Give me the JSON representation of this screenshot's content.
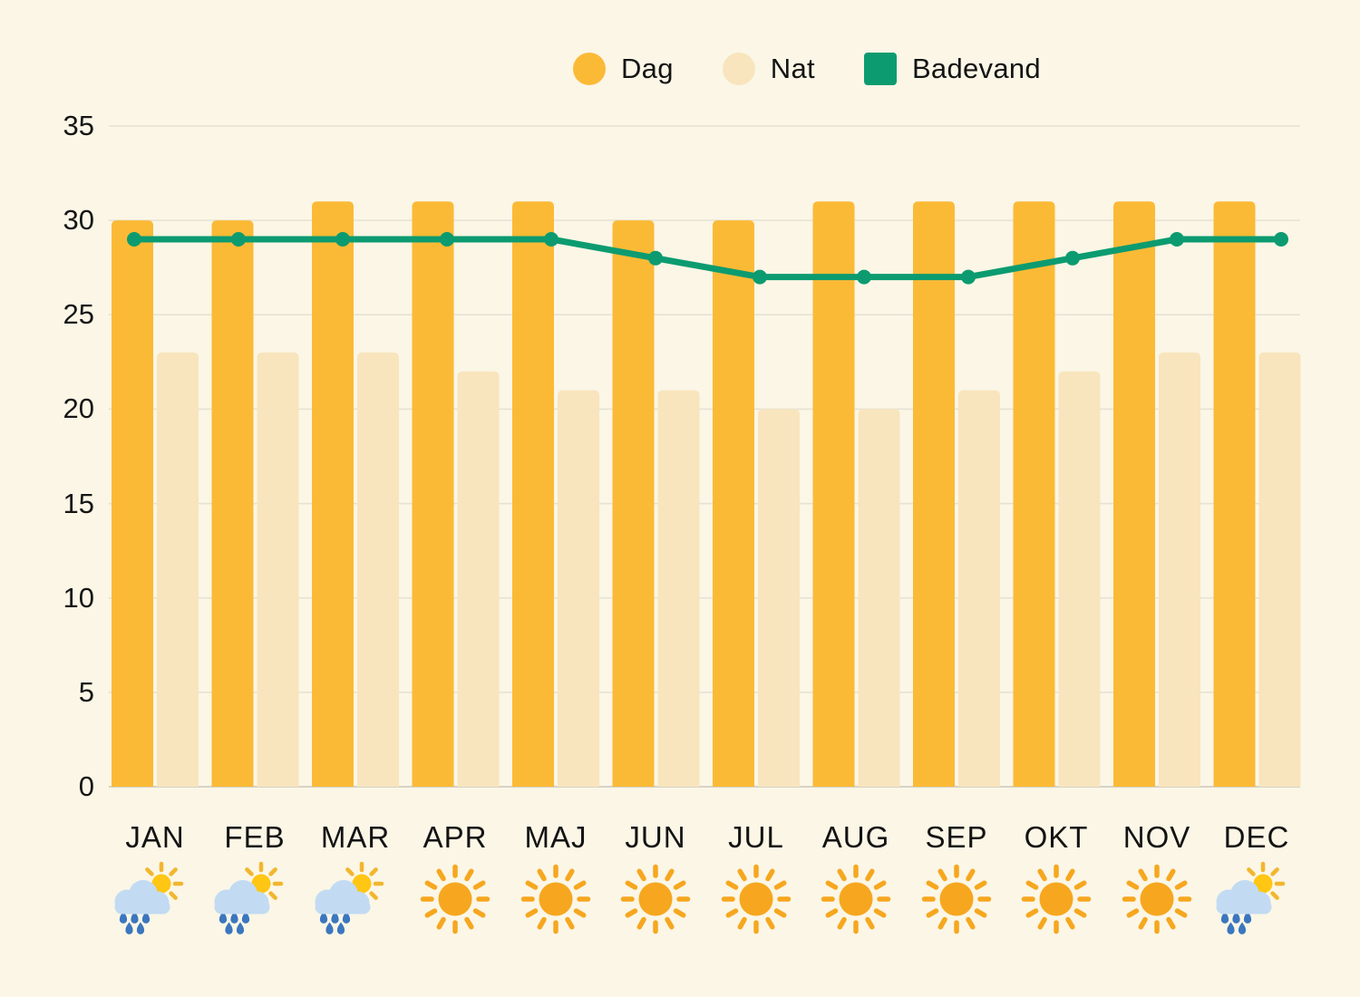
{
  "legend": {
    "items": [
      {
        "label": "Dag",
        "color": "#FBBA36",
        "shape": "circle"
      },
      {
        "label": "Nat",
        "color": "#F8E5BD",
        "shape": "circle"
      },
      {
        "label": "Badevand",
        "color": "#0C9B70",
        "shape": "square"
      }
    ]
  },
  "chart_data": {
    "type": "bar+line",
    "title": "",
    "xlabel": "",
    "ylabel": "",
    "categories": [
      "JAN",
      "FEB",
      "MAR",
      "APR",
      "MAJ",
      "JUN",
      "JUL",
      "AUG",
      "SEP",
      "OKT",
      "NOV",
      "DEC"
    ],
    "series": [
      {
        "name": "Dag",
        "type": "bar",
        "color": "#FBBA36",
        "values": [
          30,
          30,
          31,
          31,
          31,
          30,
          30,
          31,
          31,
          31,
          31,
          31
        ]
      },
      {
        "name": "Nat",
        "type": "bar",
        "color": "#F8E5BD",
        "values": [
          23,
          23,
          23,
          22,
          21,
          21,
          20,
          20,
          21,
          22,
          23,
          23
        ]
      },
      {
        "name": "Badevand",
        "type": "line",
        "color": "#0C9B70",
        "values": [
          29,
          29,
          29,
          29,
          29,
          28,
          27,
          27,
          27,
          28,
          29,
          29
        ]
      }
    ],
    "yticks": [
      35,
      30,
      25,
      20,
      15,
      10,
      5,
      0
    ],
    "ylim": [
      0,
      35
    ],
    "grid": true,
    "legend_position": "top",
    "weather_icons": [
      "rain-sun",
      "rain-sun",
      "rain-sun",
      "sun",
      "sun",
      "sun",
      "sun",
      "sun",
      "sun",
      "sun",
      "sun",
      "rain-sun"
    ]
  },
  "icons": {
    "sun_color": "#F6A71F",
    "small_sun_color": "#FFC613",
    "small_sun_ray_color": "#F2B62E",
    "cloud_color": "#C2DBF3",
    "raindrop_color": "#3B76BF"
  },
  "axis": {
    "text_color": "#151515",
    "grid_color": "#E5E1D4",
    "baseline_color": "#D7D3C6",
    "background": "#FBF6E6"
  }
}
